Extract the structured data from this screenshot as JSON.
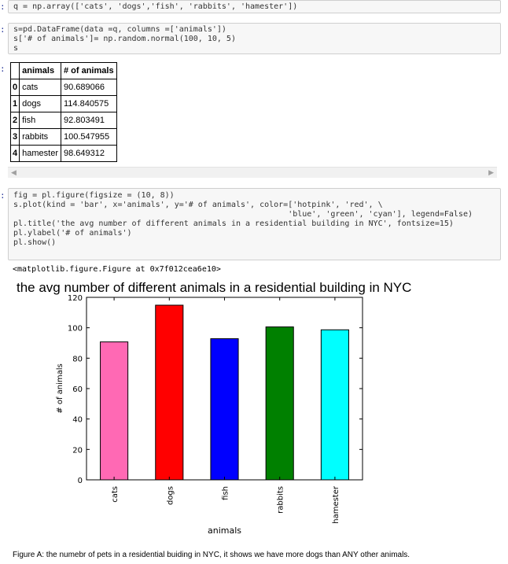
{
  "prompts": {
    "cell1": ":",
    "cell2": ":",
    "cell2_out": ":",
    "cell3": ":"
  },
  "cell1": {
    "code": "q = np.array(['cats', 'dogs','fish', 'rabbits', 'hamester'])"
  },
  "cell2": {
    "code": [
      "s=pd.DataFrame(data =q, columns =['animals'])",
      "s['# of animals']= np.random.normal(100, 10, 5)",
      "s"
    ]
  },
  "dataframe": {
    "columns": [
      "animals",
      "# of animals"
    ],
    "rows": [
      {
        "index": "0",
        "animal": "cats",
        "count": "90.689066"
      },
      {
        "index": "1",
        "animal": "dogs",
        "count": "114.840575"
      },
      {
        "index": "2",
        "animal": "fish",
        "count": "92.803491"
      },
      {
        "index": "3",
        "animal": "rabbits",
        "count": "100.547955"
      },
      {
        "index": "4",
        "animal": "hamester",
        "count": "98.649312"
      }
    ]
  },
  "scrollbar": {
    "left_arrow": "◀",
    "right_arrow": "▶"
  },
  "cell3": {
    "code": [
      "fig = pl.figure(figsize = (10, 8))",
      "",
      "s.plot(kind = 'bar', x='animals', y='# of animals', color=['hotpink', 'red', \\",
      "                                                          'blue', 'green', 'cyan'], legend=False)",
      "pl.title('the avg number of different animals in a residential building in NYC', fontsize=15)",
      "pl.ylabel('# of animals')",
      "pl.show()"
    ],
    "output": "<matplotlib.figure.Figure at 0x7f012cea6e10>"
  },
  "chart_data": {
    "type": "bar",
    "title": "the avg number of different animals in a residential building in NYC",
    "xlabel": "animals",
    "ylabel": "# of animals",
    "categories": [
      "cats",
      "dogs",
      "fish",
      "rabbits",
      "hamester"
    ],
    "values": [
      90.689066,
      114.840575,
      92.803491,
      100.547955,
      98.649312
    ],
    "colors": [
      "#ff69b4",
      "#ff0000",
      "#0000ff",
      "#008000",
      "#00ffff"
    ],
    "ylim": [
      0,
      120
    ],
    "yticks": [
      "0",
      "20",
      "40",
      "60",
      "80",
      "100",
      "120"
    ],
    "grid": false,
    "legend": false
  },
  "caption": "Figure A: the numebr of pets in a residential buiding in NYC, it shows we have more dogs than ANY other animals."
}
